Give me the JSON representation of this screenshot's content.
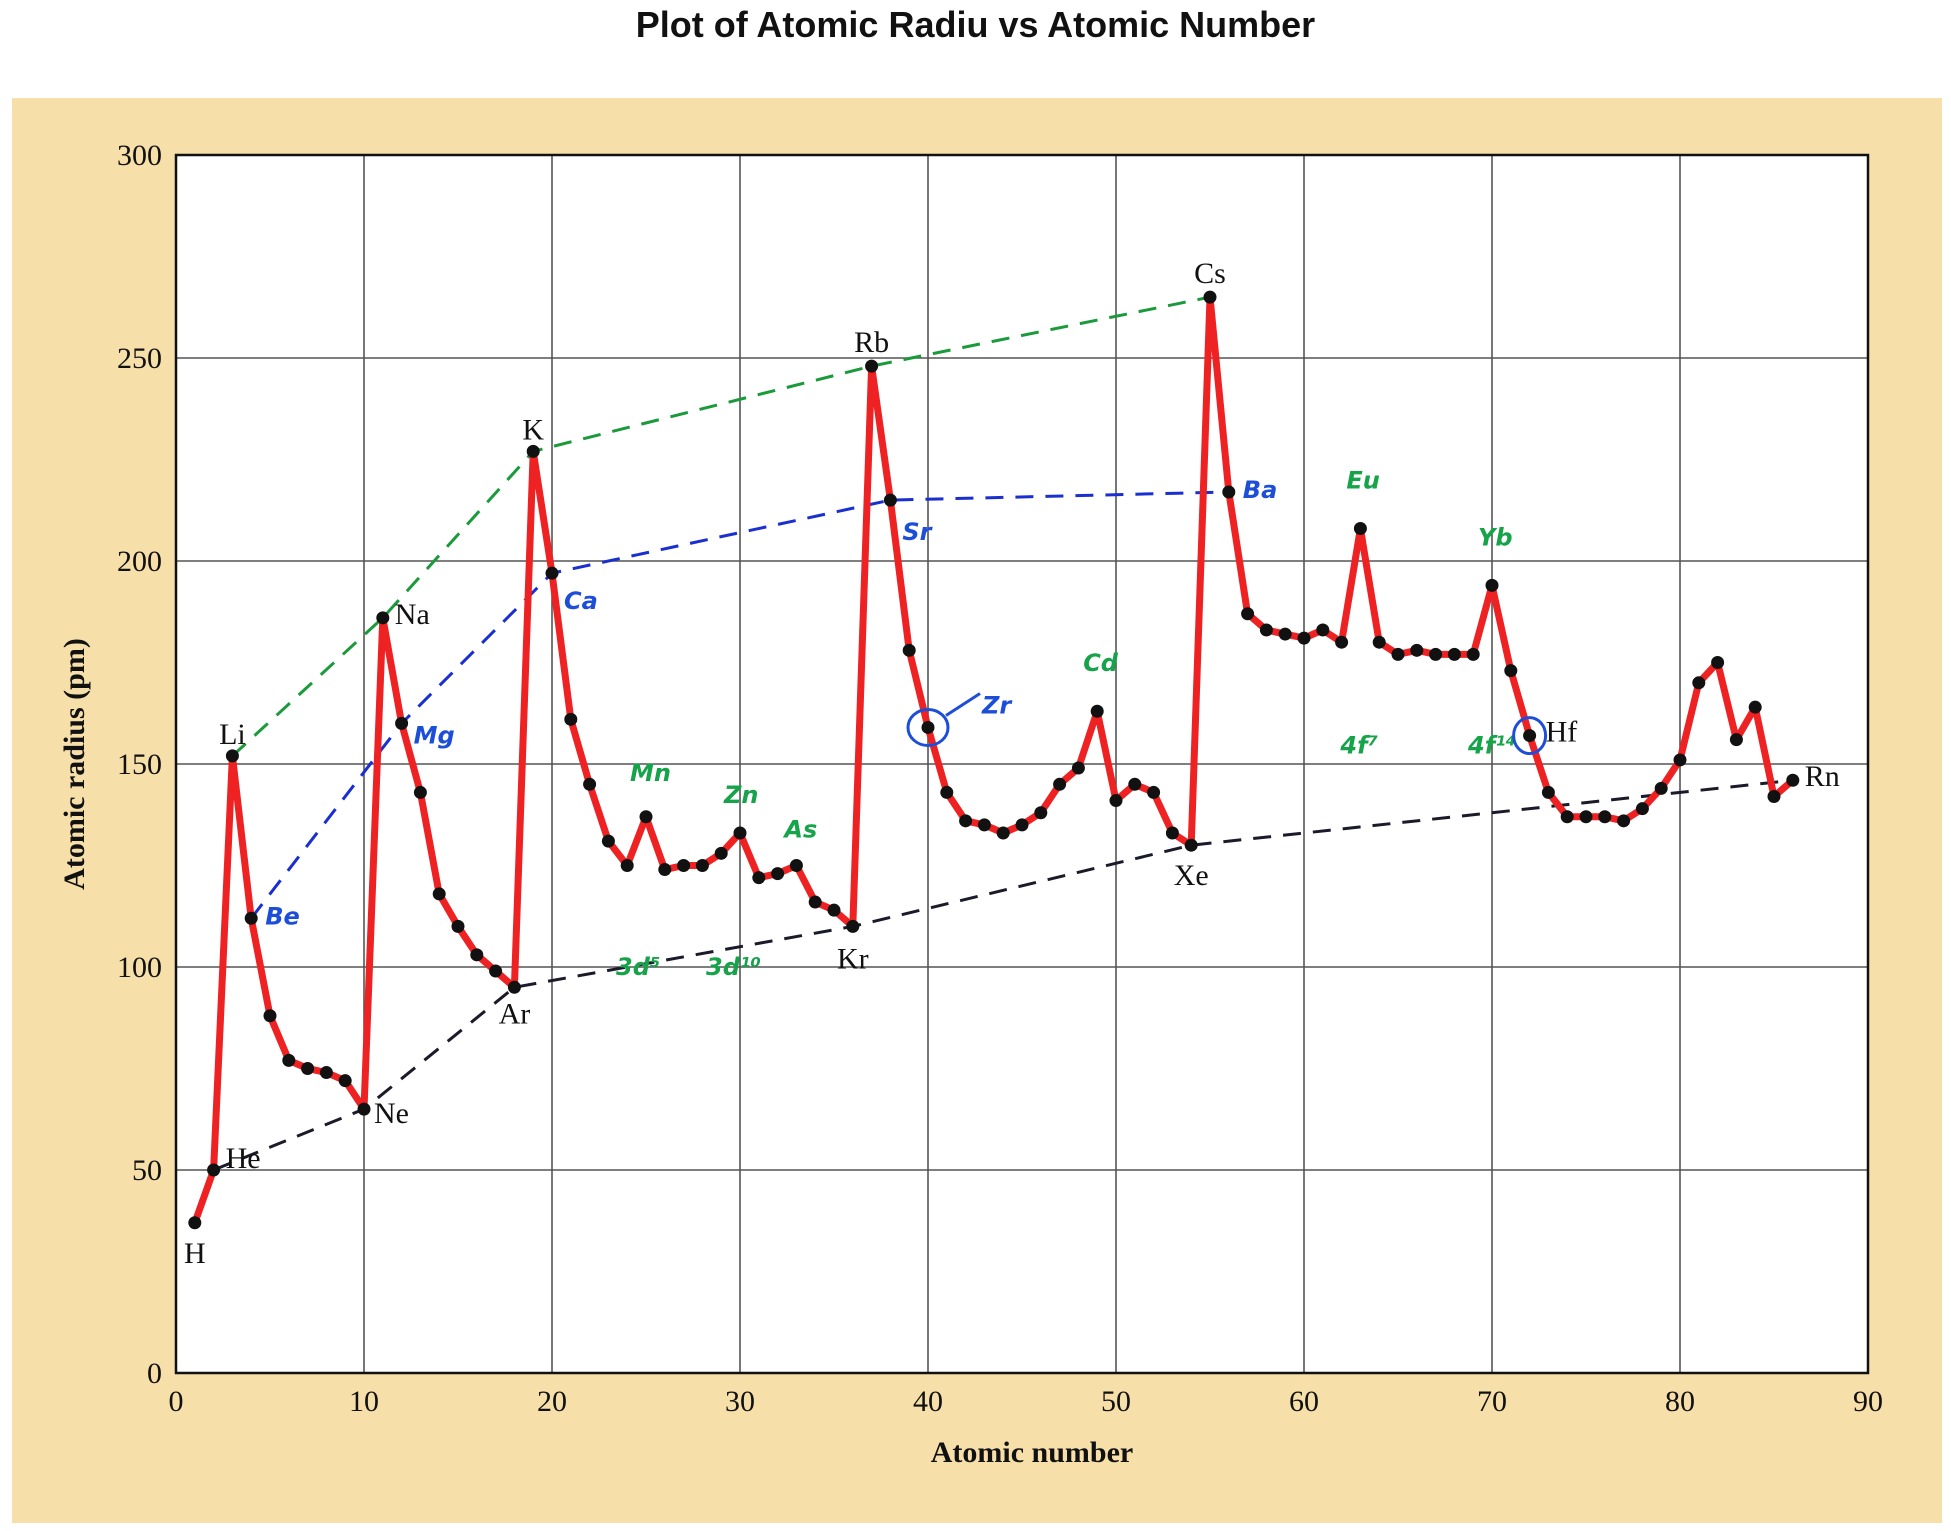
{
  "title": "Plot of Atomic Radiu  vs Atomic Number",
  "colors": {
    "background_band": "#f7dfa9",
    "plot_bg": "#ffffff",
    "grid": "#555555",
    "data_line": "#ee2222",
    "point": "#111111",
    "green_dash": "#1a9a3a",
    "blue_dash": "#1a2fd0",
    "black_dash": "#1a1a2a",
    "annotation_green": "#16a34a",
    "annotation_blue": "#1d4ed8"
  },
  "chart_data": {
    "type": "line",
    "title": "Plot of Atomic Radiu  vs Atomic Number",
    "xlabel": "Atomic number",
    "ylabel": "Atomic radius (pm)",
    "xlim": [
      0,
      90
    ],
    "ylim": [
      0,
      300
    ],
    "grid": true,
    "xticks": [
      0,
      10,
      20,
      30,
      40,
      50,
      60,
      70,
      80,
      90
    ],
    "yticks": [
      0,
      50,
      100,
      150,
      200,
      250,
      300
    ],
    "series": [
      {
        "x": [
          1,
          2,
          3,
          4,
          5,
          6,
          7,
          8,
          9,
          10,
          11,
          12,
          13,
          14,
          15,
          16,
          17,
          18,
          19,
          20,
          21,
          22,
          23,
          24,
          25,
          26,
          27,
          28,
          29,
          30,
          31,
          32,
          33,
          34,
          35,
          36,
          37,
          38,
          39,
          40,
          41,
          42,
          43,
          44,
          45,
          46,
          47,
          48,
          49,
          50,
          51,
          52,
          53,
          54,
          55,
          56,
          57,
          58,
          59,
          60,
          61,
          62,
          63,
          64,
          65,
          66,
          67,
          68,
          69,
          70,
          71,
          72,
          73,
          74,
          75,
          76,
          77,
          78,
          79,
          80,
          81,
          82,
          83,
          84,
          85,
          86
        ],
        "y": [
          37,
          50,
          152,
          112,
          88,
          77,
          75,
          74,
          72,
          65,
          186,
          160,
          143,
          118,
          110,
          103,
          99,
          95,
          227,
          197,
          161,
          145,
          131,
          125,
          137,
          124,
          125,
          125,
          128,
          133,
          122,
          123,
          125,
          116,
          114,
          110,
          248,
          215,
          178,
          159,
          143,
          136,
          135,
          133,
          135,
          138,
          145,
          149,
          163,
          141,
          145,
          143,
          133,
          130,
          265,
          217,
          187,
          183,
          182,
          181,
          183,
          180,
          208,
          180,
          177,
          178,
          177,
          177,
          177,
          194,
          173,
          157,
          143,
          137,
          137,
          137,
          136,
          139,
          144,
          151,
          170,
          175,
          156,
          164,
          142,
          146
        ]
      }
    ],
    "element_labels": [
      {
        "x": 1,
        "y": 37,
        "text": "H"
      },
      {
        "x": 2,
        "y": 50,
        "text": "He"
      },
      {
        "x": 3,
        "y": 152,
        "text": "Li"
      },
      {
        "x": 10,
        "y": 65,
        "text": "Ne"
      },
      {
        "x": 11,
        "y": 186,
        "text": "Na"
      },
      {
        "x": 18,
        "y": 95,
        "text": "Ar"
      },
      {
        "x": 19,
        "y": 227,
        "text": "K"
      },
      {
        "x": 36,
        "y": 110,
        "text": "Kr"
      },
      {
        "x": 37,
        "y": 248,
        "text": "Rb"
      },
      {
        "x": 54,
        "y": 130,
        "text": "Xe"
      },
      {
        "x": 55,
        "y": 265,
        "text": "Cs"
      },
      {
        "x": 72,
        "y": 157,
        "text": "Hf"
      },
      {
        "x": 86,
        "y": 146,
        "text": "Rn"
      }
    ],
    "annotations": [
      {
        "text": "Be",
        "color": "blue",
        "x": 4,
        "y": 112
      },
      {
        "text": "Mg",
        "color": "blue",
        "x": 12,
        "y": 160
      },
      {
        "text": "Ca",
        "color": "blue",
        "x": 20,
        "y": 197
      },
      {
        "text": "Sr",
        "color": "blue",
        "x": 38,
        "y": 215
      },
      {
        "text": "Ba",
        "color": "blue",
        "x": 56,
        "y": 217
      },
      {
        "text": "Zr",
        "color": "blue",
        "x": 40,
        "y": 159
      },
      {
        "text": "Mn",
        "color": "green",
        "x": 25,
        "y": 137
      },
      {
        "text": "Zn",
        "color": "green",
        "x": 30,
        "y": 133
      },
      {
        "text": "As",
        "color": "green",
        "x": 33,
        "y": 125
      },
      {
        "text": "3d⁵",
        "color": "green",
        "x": 25,
        "y": 102
      },
      {
        "text": "3d¹⁰",
        "color": "green",
        "x": 30,
        "y": 102
      },
      {
        "text": "Cd",
        "color": "green",
        "x": 49,
        "y": 163
      },
      {
        "text": "Eu",
        "color": "green",
        "x": 63,
        "y": 208
      },
      {
        "text": "Yb",
        "color": "green",
        "x": 70,
        "y": 194
      },
      {
        "text": "4f⁷",
        "color": "green",
        "x": 63,
        "y": 155
      },
      {
        "text": "4f¹⁴",
        "color": "green",
        "x": 70,
        "y": 155
      }
    ],
    "trend_lines": [
      {
        "color": "green",
        "points": [
          [
            3,
            152
          ],
          [
            11,
            186
          ],
          [
            19,
            227
          ],
          [
            37,
            248
          ],
          [
            55,
            265
          ]
        ]
      },
      {
        "color": "blue",
        "points": [
          [
            4,
            112
          ],
          [
            12,
            160
          ],
          [
            20,
            197
          ],
          [
            38,
            215
          ],
          [
            56,
            217
          ]
        ]
      },
      {
        "color": "black",
        "points": [
          [
            2,
            50
          ],
          [
            10,
            65
          ],
          [
            18,
            95
          ],
          [
            36,
            110
          ],
          [
            54,
            130
          ],
          [
            86,
            146
          ]
        ]
      }
    ]
  }
}
